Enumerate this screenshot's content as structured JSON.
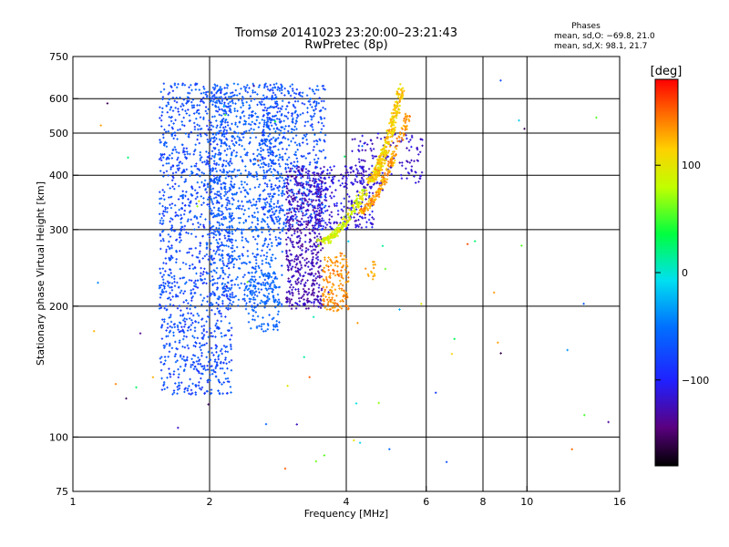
{
  "chart_data": {
    "type": "scatter",
    "title": "Tromsø 20141023 23:20:00–23:21:43",
    "subtitle": "RwPretec (8p)",
    "stats": {
      "title": "Phases",
      "line_o": "mean, sd,O: −69.8, 21.0",
      "line_x": "mean, sd,X:  98.1, 21.7"
    },
    "xlabel": "Frequency [MHz]",
    "ylabel": "Stationary phase Virtual Height [km]",
    "x_scale": "log",
    "y_scale": "log",
    "xlim": [
      1,
      16
    ],
    "ylim": [
      75,
      750
    ],
    "x_ticks": [
      {
        "value": 1,
        "label": "1"
      },
      {
        "value": 2,
        "label": "2"
      },
      {
        "value": 4,
        "label": "4"
      },
      {
        "value": 6,
        "label": "6"
      },
      {
        "value": 8,
        "label": "8"
      },
      {
        "value": 10,
        "label": "10"
      },
      {
        "value": 16,
        "label": "16"
      }
    ],
    "y_ticks": [
      {
        "value": 75,
        "label": "75"
      },
      {
        "value": 100,
        "label": "100"
      },
      {
        "value": 200,
        "label": "200"
      },
      {
        "value": 300,
        "label": "300"
      },
      {
        "value": 400,
        "label": "400"
      },
      {
        "value": 500,
        "label": "500"
      },
      {
        "value": 600,
        "label": "600"
      },
      {
        "value": 750,
        "label": "750"
      }
    ],
    "x_grid": [
      2,
      4,
      6,
      8,
      10
    ],
    "y_grid": [
      100,
      200,
      300,
      400,
      500,
      600
    ],
    "grid": true,
    "colorbar": {
      "label": "[deg]",
      "range": [
        -180,
        180
      ],
      "ticks": [
        {
          "value": 100,
          "label": "100"
        },
        {
          "value": 0,
          "label": "0"
        },
        {
          "value": -100,
          "label": "−100"
        }
      ],
      "colormap": "rainbow (black → purple → blue → cyan → green → yellow → orange → red)"
    },
    "series": [
      {
        "name": "",
        "seed": 20141023,
        "clusters": [
          {
            "kind": "fill",
            "x": [
              1.55,
              2.25
            ],
            "y": [
              125,
              650
            ],
            "phase": [
              -95,
              -55
            ],
            "n": 1300
          },
          {
            "kind": "fill",
            "x": [
              2.0,
              2.9
            ],
            "y": [
              200,
              650
            ],
            "phase": [
              -80,
              -50
            ],
            "n": 900
          },
          {
            "kind": "fill",
            "x": [
              2.6,
              3.6
            ],
            "y": [
              300,
              650
            ],
            "phase": [
              -90,
              -55
            ],
            "n": 550
          },
          {
            "kind": "fill",
            "x": [
              2.95,
              3.55
            ],
            "y": [
              197,
              420
            ],
            "phase": [
              -140,
              -110
            ],
            "n": 550
          },
          {
            "kind": "fill",
            "x": [
              3.4,
              4.6
            ],
            "y": [
              300,
              420
            ],
            "phase": [
              -130,
              -95
            ],
            "n": 260
          },
          {
            "kind": "fill",
            "x": [
              2.4,
              2.85
            ],
            "y": [
              175,
              240
            ],
            "phase": [
              -65,
              -50
            ],
            "n": 120
          },
          {
            "kind": "fill",
            "x": [
              4.1,
              5.9
            ],
            "y": [
              380,
              500
            ],
            "phase": [
              -130,
              -105
            ],
            "n": 140
          },
          {
            "kind": "band",
            "x": [
              4.5,
              5.3
            ],
            "y": [
              390,
              640
            ],
            "phase": [
              95,
              135
            ],
            "n": 320,
            "spread": 0.035
          },
          {
            "kind": "band",
            "x": [
              4.3,
              5.5
            ],
            "y": [
              330,
              560
            ],
            "phase": [
              110,
              150
            ],
            "n": 200,
            "spread": 0.03
          },
          {
            "kind": "band",
            "x": [
              3.5,
              4.4
            ],
            "y": [
              280,
              370
            ],
            "phase": [
              70,
              110
            ],
            "n": 170,
            "spread": 0.04
          },
          {
            "kind": "fill",
            "x": [
              3.55,
              4.05
            ],
            "y": [
              195,
              265
            ],
            "phase": [
              125,
              150
            ],
            "n": 160
          },
          {
            "kind": "fill",
            "x": [
              4.4,
              4.65
            ],
            "y": [
              230,
              255
            ],
            "phase": [
              120,
              140
            ],
            "n": 14
          },
          {
            "kind": "scatter",
            "x": [
              1.1,
              16
            ],
            "y": [
              80,
              700
            ],
            "phase": [
              -160,
              160
            ],
            "n": 70
          }
        ]
      }
    ]
  }
}
